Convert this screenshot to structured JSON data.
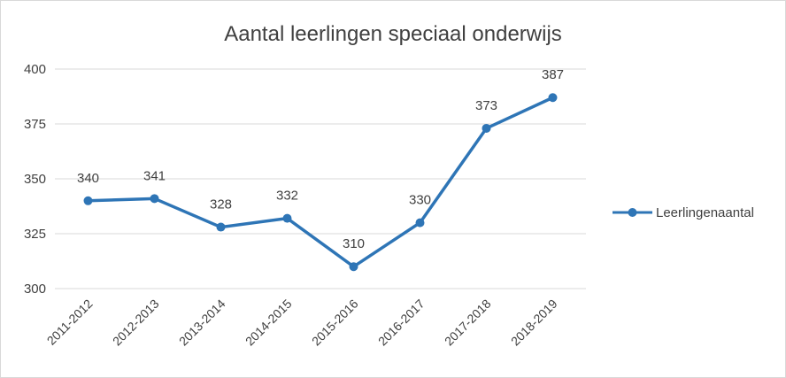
{
  "chart_data": {
    "type": "line",
    "title": "Aantal leerlingen speciaal onderwijs",
    "xlabel": "",
    "ylabel": "",
    "categories": [
      "2011-2012",
      "2012-2013",
      "2013-2014",
      "2014-2015",
      "2015-2016",
      "2016-2017",
      "2017-2018",
      "2018-2019"
    ],
    "series": [
      {
        "name": "Leerlingenaantal",
        "values": [
          340,
          341,
          328,
          332,
          310,
          330,
          373,
          387
        ],
        "color": "#2e75b6"
      }
    ],
    "ylim": [
      300,
      400
    ],
    "yticks": [
      "300",
      "325",
      "350",
      "375",
      "400"
    ],
    "grid": true,
    "legend": "right",
    "data_labels": true
  }
}
